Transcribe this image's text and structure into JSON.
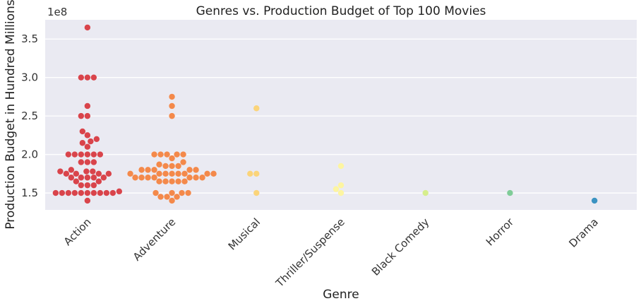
{
  "chart_data": {
    "type": "scatter",
    "title": "Genres vs. Production Budget of Top 100 Movies",
    "xlabel": "Genre",
    "ylabel": "Production Budget in Hundred Millions",
    "y_offset_label": "1e8",
    "ylim": [
      1.28,
      3.75
    ],
    "yticks": [
      1.5,
      2.0,
      2.5,
      3.0,
      3.5
    ],
    "ytick_labels": [
      "1.5",
      "2.0",
      "2.5",
      "3.0",
      "3.5"
    ],
    "grid": true,
    "categories": [
      "Action",
      "Adventure",
      "Musical",
      "Thriller/Suspense",
      "Black Comedy",
      "Horror",
      "Drama"
    ],
    "colors": [
      "#d9444b",
      "#f4894a",
      "#fbd47a",
      "#fdf5a1",
      "#d6ee8c",
      "#7fcc98",
      "#3b93c2"
    ],
    "series": [
      {
        "values": [
          3.65,
          3.0,
          3.0,
          3.0,
          2.63,
          2.5,
          2.5,
          2.3,
          2.25,
          2.2,
          2.17,
          2.15,
          2.1,
          2.0,
          2.0,
          2.0,
          2.0,
          2.0,
          2.0,
          1.9,
          1.9,
          1.9,
          1.8,
          1.78,
          1.78,
          1.78,
          1.75,
          1.75,
          1.75,
          1.75,
          1.7,
          1.7,
          1.7,
          1.7,
          1.7,
          1.65,
          1.65,
          1.6,
          1.6,
          1.6,
          1.52,
          1.5,
          1.5,
          1.5,
          1.5,
          1.5,
          1.5,
          1.5,
          1.5,
          1.5,
          1.5,
          1.4
        ]
      },
      {
        "values": [
          2.75,
          2.63,
          2.5,
          2.0,
          2.0,
          2.0,
          2.0,
          2.0,
          1.95,
          1.9,
          1.87,
          1.85,
          1.85,
          1.85,
          1.8,
          1.8,
          1.8,
          1.8,
          1.8,
          1.75,
          1.75,
          1.75,
          1.75,
          1.75,
          1.75,
          1.75,
          1.75,
          1.7,
          1.7,
          1.7,
          1.7,
          1.7,
          1.7,
          1.7,
          1.65,
          1.65,
          1.65,
          1.65,
          1.65,
          1.5,
          1.5,
          1.5,
          1.5,
          1.45,
          1.45,
          1.45,
          1.4
        ]
      },
      {
        "values": [
          2.6,
          1.75,
          1.75,
          1.5
        ]
      },
      {
        "values": [
          1.85,
          1.6,
          1.55,
          1.5
        ]
      },
      {
        "values": [
          1.5
        ]
      },
      {
        "values": [
          1.5
        ]
      },
      {
        "values": [
          1.4
        ]
      }
    ]
  }
}
